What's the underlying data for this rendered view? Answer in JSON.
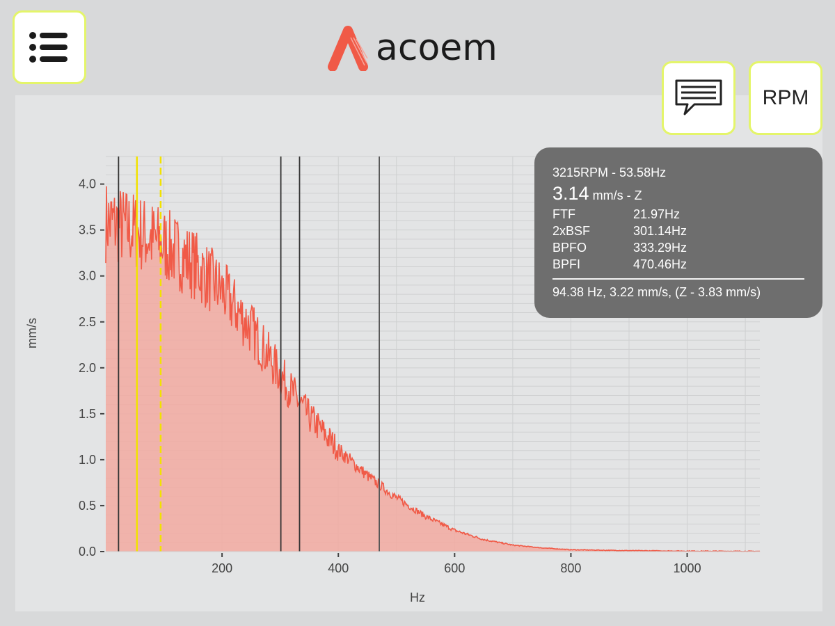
{
  "header": {
    "logo_text": "acoem",
    "menu_icon": "list-icon",
    "comment_icon": "speech-bubble-icon",
    "rpm_label": "RPM",
    "brand_color": "#f05a47",
    "button_border_color": "#e4f56a"
  },
  "info": {
    "rpm_line": "3215RPM - 53.58Hz",
    "value_big": "3.14",
    "value_unit": "mm/s - Z",
    "frequencies": [
      {
        "label": "FTF",
        "value": "21.97Hz"
      },
      {
        "label": "2xBSF",
        "value": "301.14Hz"
      },
      {
        "label": "BPFO",
        "value": "333.29Hz"
      },
      {
        "label": "BPFI",
        "value": "470.46Hz"
      }
    ],
    "cursor_line": "94.38 Hz, 3.22 mm/s, (Z - 3.83 mm/s)"
  },
  "chart_data": {
    "type": "area",
    "xlabel": "Hz",
    "ylabel": "mm/s",
    "xlim": [
      0,
      1125
    ],
    "ylim": [
      0,
      4.3
    ],
    "xticks": [
      200,
      400,
      600,
      800,
      1000
    ],
    "yticks": [
      0.0,
      0.5,
      1.0,
      1.5,
      2.0,
      2.5,
      3.0,
      3.5,
      4.0
    ],
    "grid": true,
    "series_color": "#f05a47",
    "fill_color": "#f2aaa1",
    "envelope": {
      "x": [
        0,
        50,
        100,
        150,
        200,
        250,
        300,
        350,
        400,
        450,
        500,
        550,
        600,
        650,
        700,
        750,
        800,
        900,
        1000,
        1125
      ],
      "y": [
        3.55,
        3.45,
        3.3,
        3.1,
        2.8,
        2.4,
        1.9,
        1.45,
        1.1,
        0.82,
        0.58,
        0.38,
        0.23,
        0.13,
        0.07,
        0.04,
        0.02,
        0.01,
        0.005,
        0.002
      ]
    },
    "markers": [
      {
        "x": 21.97,
        "color": "#333333",
        "style": "solid"
      },
      {
        "x": 53.58,
        "color": "#f2e200",
        "style": "solid"
      },
      {
        "x": 94.38,
        "color": "#f2e200",
        "style": "dashed"
      },
      {
        "x": 301.14,
        "color": "#333333",
        "style": "solid"
      },
      {
        "x": 333.29,
        "color": "#333333",
        "style": "solid"
      },
      {
        "x": 470.46,
        "color": "#555555",
        "style": "solid"
      }
    ]
  }
}
